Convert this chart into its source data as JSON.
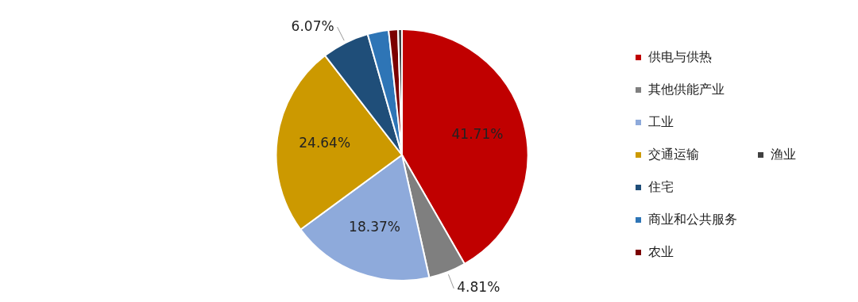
{
  "chart_data": {
    "type": "pie",
    "categories": [
      "供电与供热",
      "其他供能产业",
      "工业",
      "交通运输",
      "住宅",
      "商业和公共服务",
      "农业",
      "渔业"
    ],
    "values": [
      41.71,
      4.81,
      18.37,
      24.64,
      6.07,
      2.7,
      1.2,
      0.5
    ],
    "colors": [
      "#c00000",
      "#7f7f7f",
      "#8eaadb",
      "#cc9900",
      "#1f4e79",
      "#2e75b6",
      "#7b0000",
      "#404040"
    ],
    "value_labels": [
      "41.71%",
      "4.81%",
      "18.37%",
      "24.64%",
      "6.07%",
      null,
      null,
      null
    ],
    "legend": "right"
  }
}
